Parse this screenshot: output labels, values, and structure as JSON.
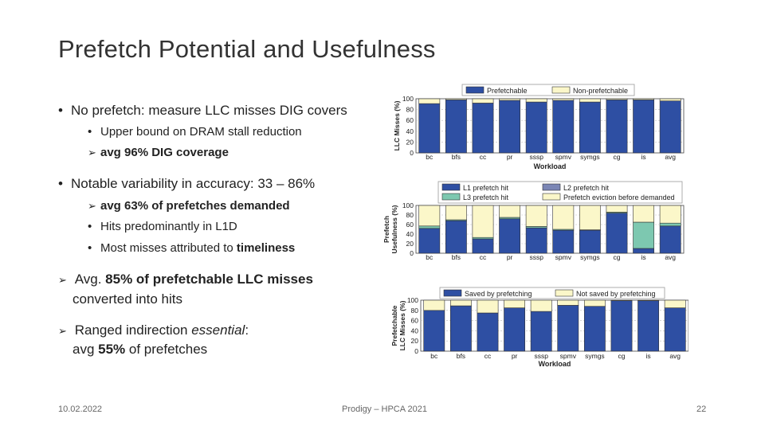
{
  "slide": {
    "title": "Prefetch Potential and Usefulness",
    "b1": "No prefetch: measure LLC misses DIG covers",
    "b1a": "Upper bound on DRAM stall reduction",
    "b1b": "avg 96% DIG coverage",
    "b2": "Notable variability in accuracy: 33 – 86%",
    "b2a": "avg 63% of prefetches demanded",
    "b2b": "Hits predominantly in L1D",
    "b2c_pre": "Most misses attributed to ",
    "b2c_bold": "timeliness",
    "b3_pre": "Avg. ",
    "b3_bold": "85% of prefetchable LLC misses",
    "b3_line2": "converted into hits",
    "b4_pre": "Ranged indirection ",
    "b4_em": "essential",
    "b4_post": ":",
    "b4_line2_pre": "avg ",
    "b4_line2_bold": "55%",
    "b4_line2_post": " of prefetches",
    "footer_date": "10.02.2022",
    "footer_center": "Prodigy – HPCA 2021",
    "footer_page": "22"
  },
  "chart_data": [
    {
      "type": "bar",
      "stacked": true,
      "categories": [
        "bc",
        "bfs",
        "cc",
        "pr",
        "sssp",
        "spmv",
        "symgs",
        "cg",
        "is",
        "avg"
      ],
      "ylabel": "LLC Misses (%)",
      "xlabel": "Workload",
      "ylim": [
        0,
        100
      ],
      "yticks": [
        0,
        20,
        40,
        60,
        80,
        100
      ],
      "series": [
        {
          "name": "Prefetchable",
          "color": "#2e4fa3",
          "values": [
            91,
            98,
            92,
            97,
            94,
            97,
            94,
            98,
            98,
            96
          ]
        },
        {
          "name": "Non-prefetchable",
          "color": "#fbf7c9",
          "values": [
            9,
            2,
            8,
            3,
            6,
            3,
            6,
            2,
            2,
            4
          ]
        }
      ]
    },
    {
      "type": "bar",
      "stacked": true,
      "categories": [
        "bc",
        "bfs",
        "cc",
        "pr",
        "sssp",
        "spmv",
        "symgs",
        "cg",
        "is",
        "avg"
      ],
      "ylabel": "Prefetch Usefulness (%)",
      "ylabel_lines": [
        "Prefetch",
        "Usefulness (%)"
      ],
      "xlabel": "",
      "ylim": [
        0,
        100
      ],
      "yticks": [
        0,
        20,
        40,
        60,
        80,
        100
      ],
      "series": [
        {
          "name": "L1 prefetch hit",
          "color": "#2e4fa3",
          "values": [
            52,
            68,
            30,
            72,
            53,
            48,
            48,
            84,
            10,
            57
          ]
        },
        {
          "name": "L2 prefetch hit",
          "color": "#7b86b5",
          "values": [
            0,
            0,
            0,
            0,
            0,
            0,
            0,
            0,
            0,
            0
          ]
        },
        {
          "name": "L3 prefetch hit",
          "color": "#7dc8b0",
          "values": [
            5,
            2,
            3,
            3,
            3,
            2,
            1,
            2,
            55,
            6
          ]
        },
        {
          "name": "Prefetch eviction before demanded",
          "color": "#fbf7c9",
          "values": [
            43,
            30,
            67,
            25,
            44,
            50,
            51,
            14,
            35,
            37
          ]
        }
      ]
    },
    {
      "type": "bar",
      "stacked": true,
      "categories": [
        "bc",
        "bfs",
        "cc",
        "pr",
        "sssp",
        "spmv",
        "symgs",
        "cg",
        "is",
        "avg"
      ],
      "ylabel": "Prefetchable LLC Misses (%)",
      "ylabel_lines": [
        "Prefetchable",
        "LLC Misses (%)"
      ],
      "xlabel": "Workload",
      "ylim": [
        0,
        100
      ],
      "yticks": [
        0,
        20,
        40,
        60,
        80,
        100
      ],
      "series": [
        {
          "name": "Saved by prefetching",
          "color": "#2e4fa3",
          "values": [
            80,
            89,
            75,
            85,
            78,
            90,
            88,
            99,
            99,
            85
          ]
        },
        {
          "name": "Not saved by prefetching",
          "color": "#fbf7c9",
          "values": [
            20,
            11,
            25,
            15,
            22,
            10,
            12,
            1,
            1,
            15
          ]
        }
      ]
    }
  ]
}
